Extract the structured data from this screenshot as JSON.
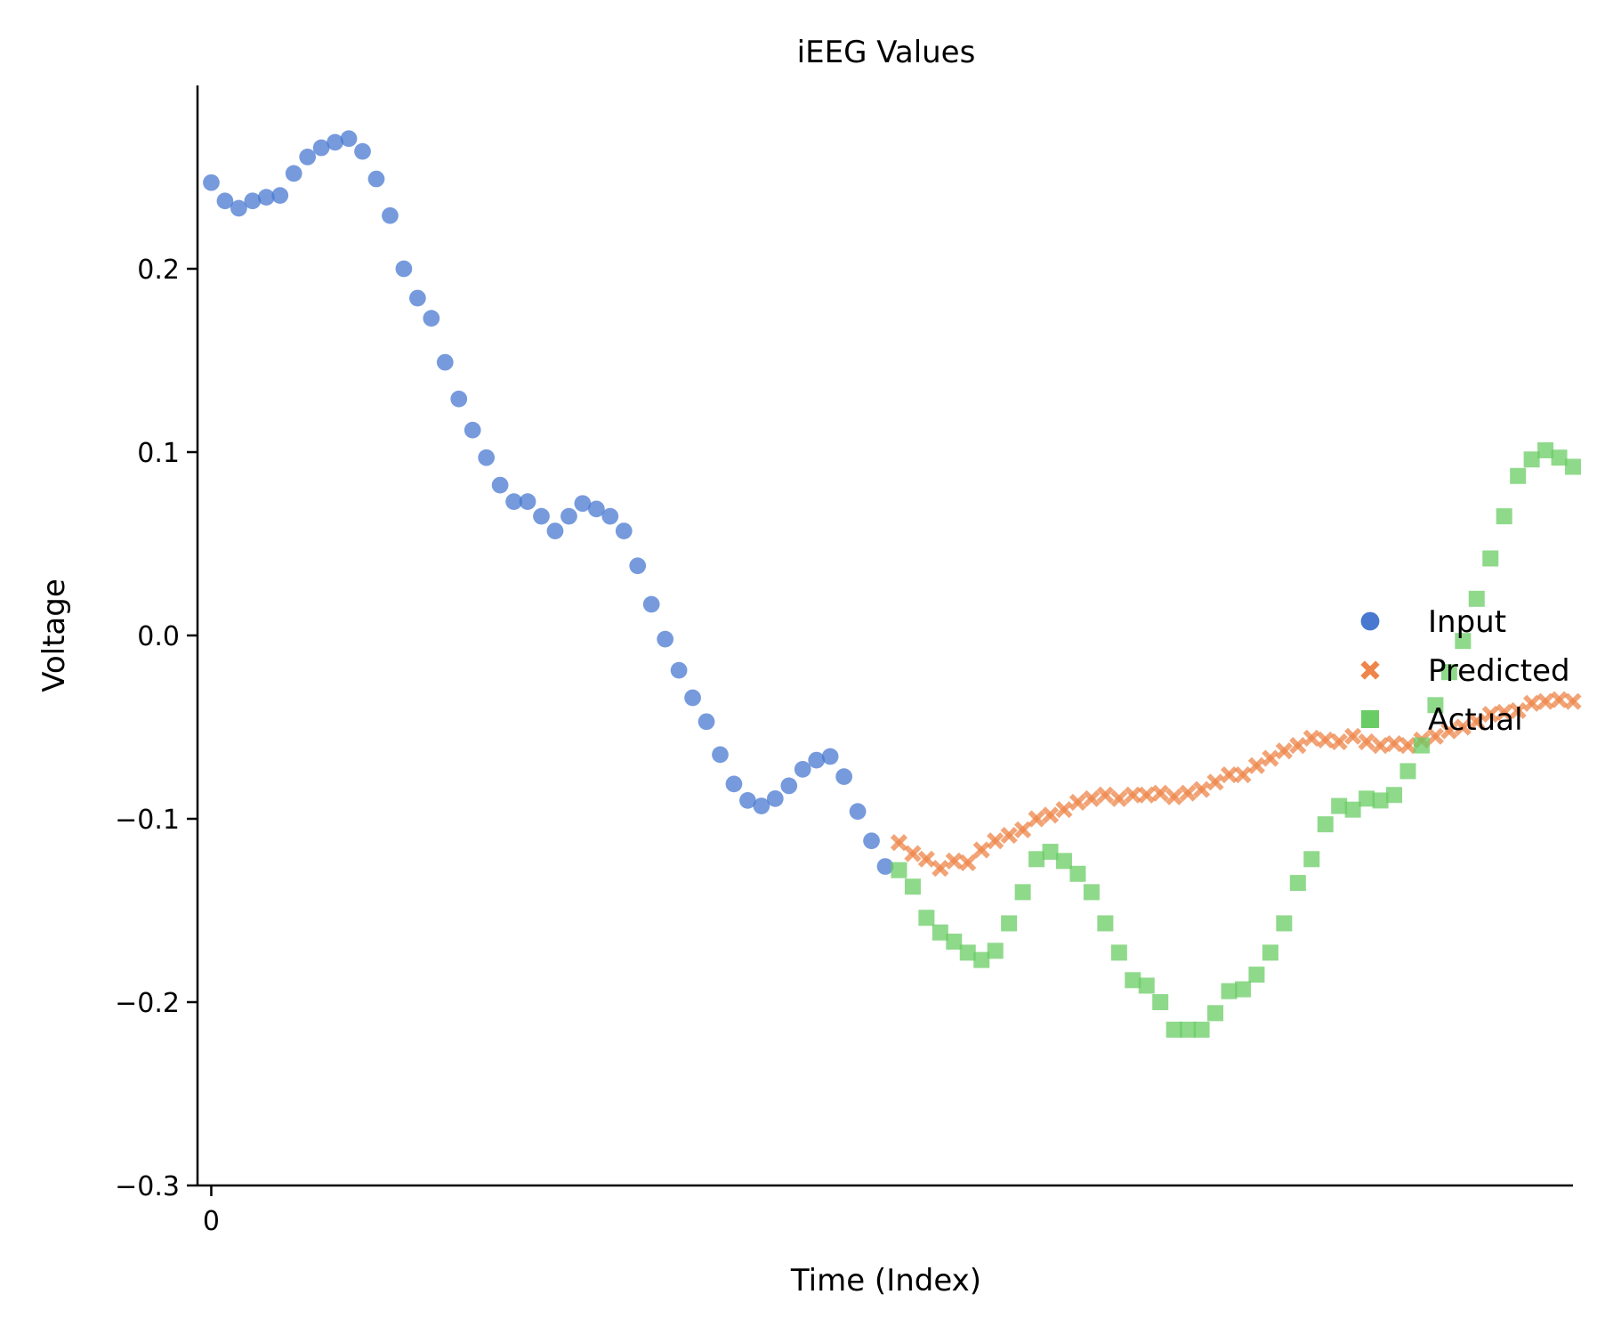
{
  "chart_data": {
    "type": "scatter",
    "title": "iEEG Values",
    "xlabel": "Time (Index)",
    "ylabel": "Voltage",
    "ylim": [
      -0.3,
      0.3
    ],
    "xlim": [
      -1,
      99
    ],
    "yticks": [
      -0.3,
      -0.2,
      -0.1,
      0.0,
      0.1,
      0.2
    ],
    "ytick_labels": [
      "−0.3",
      "−0.2",
      "−0.1",
      "0.0",
      "0.1",
      "0.2"
    ],
    "xticks": [
      0
    ],
    "xtick_labels": [
      "0"
    ],
    "grid": false,
    "legend_position": "right",
    "series": [
      {
        "name": "Input",
        "marker": "circle",
        "color": "#4878d0",
        "x": [
          0,
          1,
          2,
          3,
          4,
          5,
          6,
          7,
          8,
          9,
          10,
          11,
          12,
          13,
          14,
          15,
          16,
          17,
          18,
          19,
          20,
          21,
          22,
          23,
          24,
          25,
          26,
          27,
          28,
          29,
          30,
          31,
          32,
          33,
          34,
          35,
          36,
          37,
          38,
          39,
          40,
          41,
          42,
          43,
          44,
          45,
          46,
          47,
          48,
          49
        ],
        "values": [
          0.247,
          0.237,
          0.233,
          0.237,
          0.239,
          0.24,
          0.252,
          0.261,
          0.266,
          0.269,
          0.271,
          0.264,
          0.249,
          0.229,
          0.2,
          0.184,
          0.173,
          0.149,
          0.129,
          0.112,
          0.097,
          0.082,
          0.073,
          0.073,
          0.065,
          0.057,
          0.065,
          0.072,
          0.069,
          0.065,
          0.057,
          0.038,
          0.017,
          -0.002,
          -0.019,
          -0.034,
          -0.047,
          -0.065,
          -0.081,
          -0.09,
          -0.093,
          -0.089,
          -0.082,
          -0.073,
          -0.068,
          -0.066,
          -0.077,
          -0.096,
          -0.112,
          -0.126
        ]
      },
      {
        "name": "Predicted",
        "marker": "x",
        "color": "#ee854a",
        "x": [
          50,
          51,
          52,
          53,
          54,
          55,
          56,
          57,
          58,
          59,
          60,
          61,
          62,
          63,
          64,
          65,
          66,
          67,
          68,
          69,
          70,
          71,
          72,
          73,
          74,
          75,
          76,
          77,
          78,
          79,
          80,
          81,
          82,
          83,
          84,
          85,
          86,
          87,
          88,
          89,
          90,
          91,
          92,
          93,
          94,
          95,
          96,
          97,
          98,
          99
        ],
        "values": [
          -0.113,
          -0.119,
          -0.122,
          -0.127,
          -0.123,
          -0.124,
          -0.117,
          -0.112,
          -0.109,
          -0.106,
          -0.1,
          -0.098,
          -0.095,
          -0.091,
          -0.089,
          -0.087,
          -0.089,
          -0.087,
          -0.087,
          -0.086,
          -0.088,
          -0.086,
          -0.084,
          -0.08,
          -0.076,
          -0.076,
          -0.071,
          -0.067,
          -0.063,
          -0.06,
          -0.056,
          -0.057,
          -0.058,
          -0.055,
          -0.058,
          -0.06,
          -0.059,
          -0.06,
          -0.057,
          -0.055,
          -0.052,
          -0.05,
          -0.047,
          -0.043,
          -0.042,
          -0.041,
          -0.037,
          -0.036,
          -0.035,
          -0.036
        ]
      },
      {
        "name": "Actual",
        "marker": "square",
        "color": "#6acc64",
        "x": [
          50,
          51,
          52,
          53,
          54,
          55,
          56,
          57,
          58,
          59,
          60,
          61,
          62,
          63,
          64,
          65,
          66,
          67,
          68,
          69,
          70,
          71,
          72,
          73,
          74,
          75,
          76,
          77,
          78,
          79,
          80,
          81,
          82,
          83,
          84,
          85,
          86,
          87,
          88,
          89,
          90,
          91,
          92,
          93,
          94,
          95,
          96,
          97,
          98,
          99
        ],
        "values": [
          -0.128,
          -0.137,
          -0.154,
          -0.162,
          -0.167,
          -0.173,
          -0.177,
          -0.172,
          -0.157,
          -0.14,
          -0.122,
          -0.118,
          -0.123,
          -0.13,
          -0.14,
          -0.157,
          -0.173,
          -0.188,
          -0.191,
          -0.2,
          -0.215,
          -0.215,
          -0.215,
          -0.206,
          -0.194,
          -0.193,
          -0.185,
          -0.173,
          -0.157,
          -0.135,
          -0.122,
          -0.103,
          -0.093,
          -0.095,
          -0.089,
          -0.09,
          -0.087,
          -0.074,
          -0.06,
          -0.038,
          -0.02,
          -0.003,
          0.02,
          0.042,
          0.065,
          0.087,
          0.096,
          0.101,
          0.097,
          0.092
        ]
      }
    ]
  }
}
